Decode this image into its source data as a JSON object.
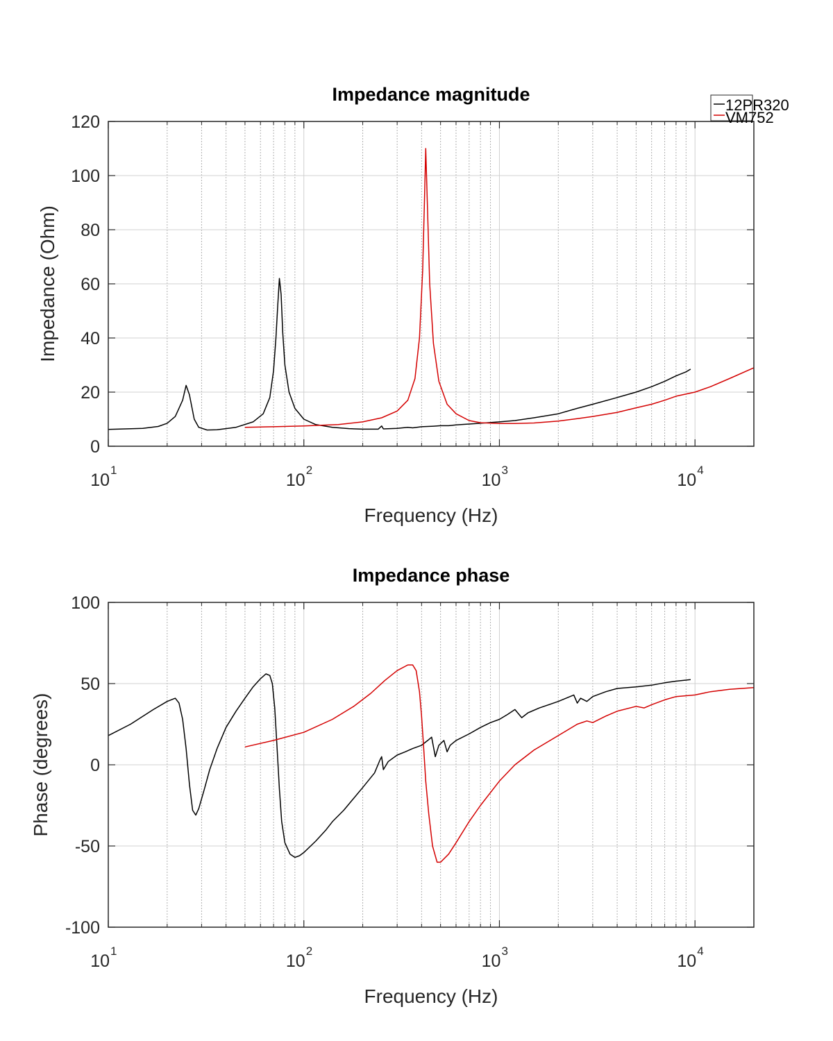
{
  "chart_data": [
    {
      "type": "line",
      "title": "Impedance magnitude",
      "xlabel": "Frequency (Hz)",
      "ylabel": "Impedance (Ohm)",
      "xscale": "log",
      "xlim": [
        10,
        20000
      ],
      "ylim": [
        0,
        120
      ],
      "xticks": [
        {
          "base": "10",
          "exp": "1",
          "value": 10
        },
        {
          "base": "10",
          "exp": "2",
          "value": 100
        },
        {
          "base": "10",
          "exp": "3",
          "value": 1000
        },
        {
          "base": "10",
          "exp": "4",
          "value": 10000
        }
      ],
      "yticks": [
        "0",
        "20",
        "40",
        "60",
        "80",
        "100",
        "120"
      ],
      "grid": true,
      "legend": {
        "placement": "top-right",
        "entries": [
          "12PR320",
          "VM752"
        ]
      },
      "series": [
        {
          "name": "12PR320",
          "color": "#000000",
          "points": [
            [
              10,
              6.2
            ],
            [
              15,
              6.6
            ],
            [
              18,
              7.3
            ],
            [
              20,
              8.5
            ],
            [
              22,
              11
            ],
            [
              24,
              17
            ],
            [
              25,
              22.5
            ],
            [
              26,
              19
            ],
            [
              27.5,
              10
            ],
            [
              29,
              7
            ],
            [
              32,
              6
            ],
            [
              36,
              6.1
            ],
            [
              45,
              7
            ],
            [
              55,
              9
            ],
            [
              62,
              12
            ],
            [
              67,
              18
            ],
            [
              70,
              28
            ],
            [
              72,
              40
            ],
            [
              73.5,
              52
            ],
            [
              75,
              62
            ],
            [
              76.5,
              56
            ],
            [
              78,
              42
            ],
            [
              80,
              30
            ],
            [
              84,
              20
            ],
            [
              90,
              14
            ],
            [
              100,
              10
            ],
            [
              115,
              8
            ],
            [
              140,
              7
            ],
            [
              170,
              6.5
            ],
            [
              200,
              6.3
            ],
            [
              240,
              6.3
            ],
            [
              250,
              7.5
            ],
            [
              255,
              6.4
            ],
            [
              300,
              6.6
            ],
            [
              340,
              7
            ],
            [
              360,
              6.8
            ],
            [
              400,
              7.2
            ],
            [
              460,
              7.4
            ],
            [
              500,
              7.6
            ],
            [
              550,
              7.6
            ],
            [
              600,
              7.9
            ],
            [
              800,
              8.5
            ],
            [
              1000,
              9
            ],
            [
              1200,
              9.5
            ],
            [
              1500,
              10.5
            ],
            [
              2000,
              12
            ],
            [
              2500,
              14
            ],
            [
              3000,
              15.5
            ],
            [
              4000,
              18
            ],
            [
              5000,
              20
            ],
            [
              6000,
              22
            ],
            [
              7000,
              24
            ],
            [
              8000,
              26
            ],
            [
              9000,
              27.5
            ],
            [
              9500,
              28.5
            ]
          ]
        },
        {
          "name": "VM752",
          "color": "#d40000",
          "points": [
            [
              50,
              7
            ],
            [
              70,
              7.2
            ],
            [
              100,
              7.5
            ],
            [
              150,
              8
            ],
            [
              200,
              9
            ],
            [
              250,
              10.5
            ],
            [
              300,
              13
            ],
            [
              340,
              17
            ],
            [
              370,
              25
            ],
            [
              390,
              40
            ],
            [
              405,
              65
            ],
            [
              415,
              95
            ],
            [
              420,
              110
            ],
            [
              428,
              90
            ],
            [
              440,
              60
            ],
            [
              460,
              38
            ],
            [
              490,
              24
            ],
            [
              540,
              15.5
            ],
            [
              600,
              12
            ],
            [
              700,
              9.5
            ],
            [
              800,
              8.7
            ],
            [
              1000,
              8.4
            ],
            [
              1200,
              8.4
            ],
            [
              1500,
              8.6
            ],
            [
              2000,
              9.3
            ],
            [
              2500,
              10.2
            ],
            [
              3000,
              11
            ],
            [
              4000,
              12.5
            ],
            [
              5000,
              14.2
            ],
            [
              6000,
              15.5
            ],
            [
              7000,
              17
            ],
            [
              8000,
              18.5
            ],
            [
              10000,
              20
            ],
            [
              12000,
              22
            ],
            [
              15000,
              25
            ],
            [
              20000,
              29
            ]
          ]
        }
      ]
    },
    {
      "type": "line",
      "title": "Impedance phase",
      "xlabel": "Frequency (Hz)",
      "ylabel": "Phase (degrees)",
      "xscale": "log",
      "xlim": [
        10,
        20000
      ],
      "ylim": [
        -100,
        100
      ],
      "xticks": [
        {
          "base": "10",
          "exp": "1",
          "value": 10
        },
        {
          "base": "10",
          "exp": "2",
          "value": 100
        },
        {
          "base": "10",
          "exp": "3",
          "value": 1000
        },
        {
          "base": "10",
          "exp": "4",
          "value": 10000
        }
      ],
      "yticks": [
        "-100",
        "-50",
        "0",
        "50",
        "100"
      ],
      "grid": true,
      "series": [
        {
          "name": "12PR320",
          "color": "#000000",
          "points": [
            [
              10,
              18
            ],
            [
              13,
              25
            ],
            [
              17,
              34
            ],
            [
              20,
              39
            ],
            [
              22,
              41
            ],
            [
              23,
              38
            ],
            [
              24,
              28
            ],
            [
              25,
              10
            ],
            [
              26,
              -12
            ],
            [
              27,
              -28
            ],
            [
              28,
              -31
            ],
            [
              29,
              -27
            ],
            [
              31,
              -15
            ],
            [
              33,
              -3
            ],
            [
              36,
              10
            ],
            [
              40,
              23
            ],
            [
              45,
              33
            ],
            [
              50,
              41
            ],
            [
              55,
              48
            ],
            [
              60,
              53
            ],
            [
              64,
              56
            ],
            [
              67,
              55
            ],
            [
              69,
              50
            ],
            [
              71,
              35
            ],
            [
              73,
              10
            ],
            [
              75,
              -15
            ],
            [
              77,
              -35
            ],
            [
              80,
              -48
            ],
            [
              85,
              -55
            ],
            [
              90,
              -57
            ],
            [
              95,
              -56
            ],
            [
              100,
              -54
            ],
            [
              115,
              -47
            ],
            [
              130,
              -40
            ],
            [
              140,
              -35
            ],
            [
              160,
              -28
            ],
            [
              200,
              -14
            ],
            [
              230,
              -5
            ],
            [
              245,
              3
            ],
            [
              250,
              5
            ],
            [
              255,
              -3
            ],
            [
              270,
              2
            ],
            [
              300,
              6
            ],
            [
              330,
              8
            ],
            [
              360,
              10
            ],
            [
              400,
              12
            ],
            [
              430,
              15
            ],
            [
              450,
              17
            ],
            [
              470,
              5
            ],
            [
              490,
              12
            ],
            [
              520,
              15
            ],
            [
              540,
              8
            ],
            [
              560,
              12
            ],
            [
              600,
              15
            ],
            [
              700,
              19
            ],
            [
              800,
              23
            ],
            [
              900,
              26
            ],
            [
              1000,
              28
            ],
            [
              1100,
              31
            ],
            [
              1200,
              34
            ],
            [
              1300,
              29
            ],
            [
              1400,
              32
            ],
            [
              1600,
              35
            ],
            [
              2000,
              39
            ],
            [
              2400,
              43
            ],
            [
              2500,
              38
            ],
            [
              2600,
              41
            ],
            [
              2800,
              39
            ],
            [
              3000,
              42
            ],
            [
              3500,
              45
            ],
            [
              4000,
              47
            ],
            [
              5000,
              48
            ],
            [
              6000,
              49
            ],
            [
              7000,
              50.5
            ],
            [
              8000,
              51.5
            ],
            [
              9500,
              52.5
            ]
          ]
        },
        {
          "name": "VM752",
          "color": "#d40000",
          "points": [
            [
              50,
              11
            ],
            [
              70,
              15
            ],
            [
              100,
              20
            ],
            [
              140,
              28
            ],
            [
              180,
              36
            ],
            [
              220,
              44
            ],
            [
              260,
              52
            ],
            [
              300,
              58
            ],
            [
              340,
              61.5
            ],
            [
              360,
              61.5
            ],
            [
              375,
              58
            ],
            [
              390,
              45
            ],
            [
              400,
              30
            ],
            [
              410,
              10
            ],
            [
              420,
              -10
            ],
            [
              435,
              -30
            ],
            [
              455,
              -50
            ],
            [
              480,
              -60
            ],
            [
              500,
              -60
            ],
            [
              550,
              -55
            ],
            [
              600,
              -48
            ],
            [
              700,
              -35
            ],
            [
              800,
              -25
            ],
            [
              1000,
              -10
            ],
            [
              1200,
              0
            ],
            [
              1500,
              9
            ],
            [
              2000,
              18
            ],
            [
              2500,
              25
            ],
            [
              2800,
              27
            ],
            [
              3000,
              26
            ],
            [
              3500,
              30
            ],
            [
              4000,
              33
            ],
            [
              5000,
              36
            ],
            [
              5500,
              35
            ],
            [
              6000,
              37
            ],
            [
              7000,
              40
            ],
            [
              8000,
              42
            ],
            [
              10000,
              43
            ],
            [
              12000,
              45
            ],
            [
              15000,
              46.5
            ],
            [
              20000,
              47.5
            ]
          ]
        }
      ]
    }
  ]
}
